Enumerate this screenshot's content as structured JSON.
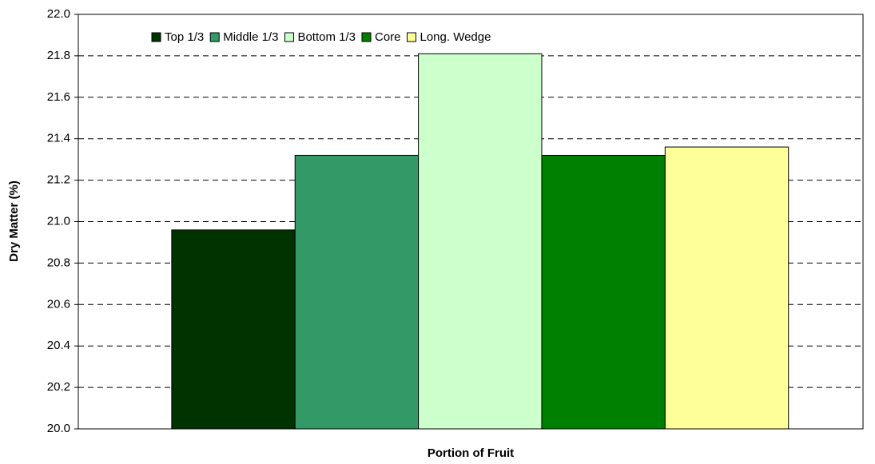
{
  "chart_data": {
    "type": "bar",
    "x_label": "Portion of Fruit",
    "y_label": "Dry Matter (%)",
    "categories": [
      null
    ],
    "series": [
      {
        "name": "Top 1/3",
        "color": "#003300",
        "values": [
          20.96
        ]
      },
      {
        "name": "Middle 1/3",
        "color": "#339966",
        "values": [
          21.32
        ]
      },
      {
        "name": "Bottom 1/3",
        "color": "#ccffcc",
        "values": [
          21.81
        ]
      },
      {
        "name": "Core",
        "color": "#008000",
        "values": [
          21.32
        ]
      },
      {
        "name": "Long. Wedge",
        "color": "#ffff99",
        "values": [
          21.36
        ]
      }
    ],
    "ylim": [
      20,
      22
    ],
    "yticks": [
      {
        "value": 20,
        "label": "20.0"
      },
      {
        "value": 20.2,
        "label": "20.2"
      },
      {
        "value": 20.4,
        "label": "20.4"
      },
      {
        "value": 20.6,
        "label": "20.6"
      },
      {
        "value": 20.8,
        "label": "20.8"
      },
      {
        "value": 21,
        "label": "21.0"
      },
      {
        "value": 21.2,
        "label": "21.2"
      },
      {
        "value": 21.4,
        "label": "21.4"
      },
      {
        "value": 21.6,
        "label": "21.6"
      },
      {
        "value": 21.8,
        "label": "21.8"
      },
      {
        "value": 22,
        "label": "22.0"
      }
    ],
    "grid": true,
    "legend": "top"
  }
}
